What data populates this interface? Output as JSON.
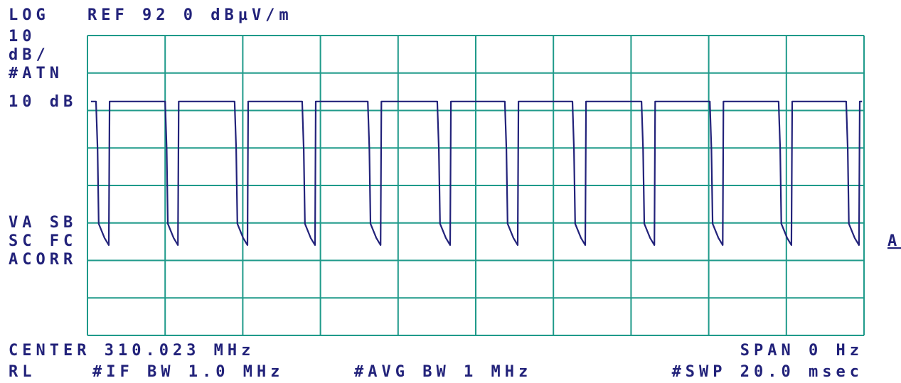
{
  "chart_data": {
    "type": "line",
    "annotations": [
      "LOG",
      "REF 92 0 dBµV/m",
      "10",
      "dB/",
      "#ATN",
      "10 dB",
      "VA SB",
      "SC FC",
      "ACORR",
      "CENTER 310.023 MHz",
      "SPAN 0 Hz",
      "RL",
      "#IF BW 1.0 MHz",
      "#AVG BW 1 MHz",
      "#SWP 20.0 msec",
      "A"
    ],
    "x": [
      0.09,
      0.22,
      0.26,
      0.29,
      0.44,
      0.55,
      0.57,
      2.0,
      2.04,
      2.07,
      2.22,
      2.33,
      2.35,
      3.79,
      3.83,
      3.86,
      4.01,
      4.12,
      4.14,
      5.53,
      5.57,
      5.6,
      5.75,
      5.86,
      5.88,
      7.22,
      7.26,
      7.29,
      7.44,
      7.55,
      7.57,
      9.01,
      9.05,
      9.08,
      9.23,
      9.34,
      9.36,
      10.75,
      10.79,
      10.82,
      10.97,
      11.08,
      11.1,
      12.49,
      12.53,
      12.56,
      12.71,
      12.82,
      12.84,
      14.27,
      14.31,
      14.34,
      14.49,
      14.6,
      14.62,
      16.03,
      16.07,
      16.1,
      16.25,
      16.36,
      16.38,
      17.8,
      17.84,
      17.87,
      18.02,
      18.13,
      18.15,
      19.54,
      19.58,
      19.61,
      19.76,
      19.87,
      19.89,
      19.95
    ],
    "values": [
      74.4,
      74.4,
      61.7,
      41.8,
      38,
      36.1,
      74.4,
      74.4,
      61.7,
      41.8,
      38,
      36.1,
      74.4,
      74.4,
      61.7,
      41.8,
      38,
      36.1,
      74.4,
      74.4,
      61.7,
      41.8,
      38,
      36.1,
      74.4,
      74.4,
      61.7,
      41.8,
      38,
      36.1,
      74.4,
      74.4,
      61.7,
      41.8,
      38,
      36.1,
      74.4,
      74.4,
      61.7,
      41.8,
      38,
      36.1,
      74.4,
      74.4,
      61.7,
      41.8,
      38,
      36.1,
      74.4,
      74.4,
      61.7,
      41.8,
      38,
      36.1,
      74.4,
      74.4,
      61.7,
      41.8,
      38,
      36.1,
      74.4,
      74.4,
      61.7,
      41.8,
      38,
      36.1,
      74.4,
      74.4,
      61.7,
      41.8,
      38,
      36.1,
      74.4,
      74.4
    ],
    "color": "#22227a",
    "grid_color": "#1f9a8a",
    "xlim": [
      0,
      20
    ],
    "ylim": [
      12,
      92
    ],
    "xticks": [
      0,
      2,
      4,
      6,
      8,
      10,
      12,
      14,
      16,
      18,
      20
    ],
    "yticks": [
      12,
      22,
      32,
      42,
      52,
      62,
      72,
      82,
      92
    ],
    "grid": true
  }
}
